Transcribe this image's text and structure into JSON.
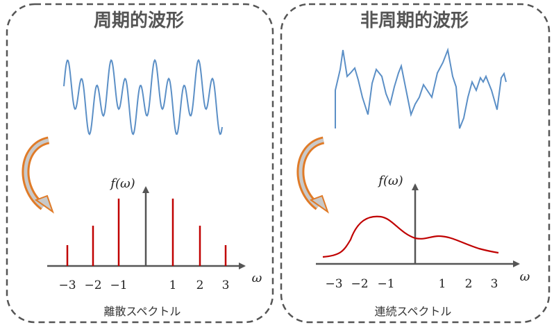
{
  "panels": [
    {
      "title": "周期的波形",
      "axis_label": "f(ω)",
      "variable": "ω",
      "ticks": [
        "−3",
        "−2",
        "−1",
        "1",
        "2",
        "3"
      ],
      "caption": "離散スペクトル"
    },
    {
      "title": "非周期的波形",
      "axis_label": "f(ω)",
      "variable": "ω",
      "ticks": [
        "−3",
        "−2",
        "−1",
        "1",
        "2",
        "3"
      ],
      "caption": "連続スペクトル"
    }
  ]
}
